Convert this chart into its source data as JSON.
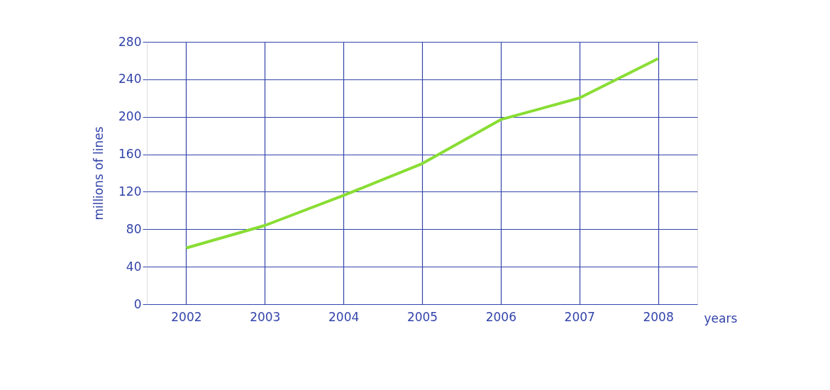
{
  "chart_data": {
    "type": "line",
    "xlabel": "years",
    "ylabel": "millions of lines",
    "categories": [
      "2002",
      "2003",
      "2004",
      "2005",
      "2006",
      "2007",
      "2008"
    ],
    "series": [
      {
        "color": "#88dd33",
        "values": [
          60,
          84,
          116,
          150,
          197,
          220,
          262
        ]
      }
    ],
    "ylim": [
      0,
      280
    ],
    "yticks": [
      0,
      40,
      80,
      120,
      160,
      200,
      240,
      280
    ],
    "grid": true,
    "marker": "none",
    "line_style": "solid"
  }
}
